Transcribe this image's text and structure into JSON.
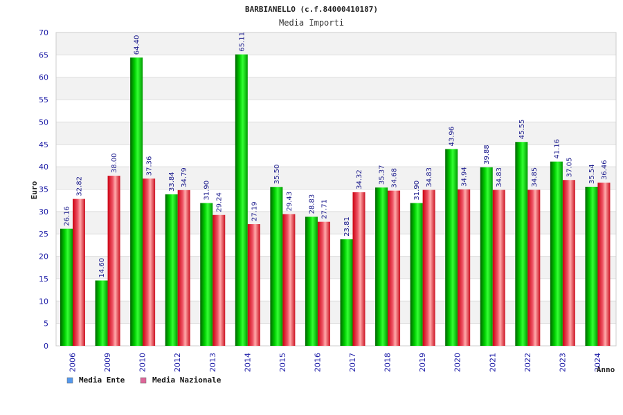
{
  "chart_data": {
    "type": "bar",
    "title": "BARBIANELLO (c.f.84000410187)",
    "subtitle": "Media Importi",
    "ylabel": "Euro",
    "xlabel": "Anno",
    "ylim": [
      0,
      70
    ],
    "ytick_step": 5,
    "grid": true,
    "legend_position": "bottom-left",
    "categories": [
      "2006",
      "2009",
      "2010",
      "2012",
      "2013",
      "2014",
      "2015",
      "2016",
      "2017",
      "2018",
      "2019",
      "2020",
      "2021",
      "2022",
      "2023",
      "2024"
    ],
    "series": [
      {
        "name": "Media Ente",
        "color": "#00aa00",
        "legend_color": "#5599ee",
        "values": [
          26.16,
          14.6,
          64.4,
          33.84,
          31.9,
          65.11,
          35.5,
          28.83,
          23.81,
          35.37,
          31.9,
          43.96,
          39.88,
          45.55,
          41.16,
          35.54
        ],
        "labels": [
          "26.16",
          "14.60",
          "64.40",
          "33.84",
          "31.90",
          "65.11",
          "35.50",
          "28.83",
          "23.81",
          "35.37",
          "31.90",
          "43.96",
          "39.88",
          "45.55",
          "41.16",
          "35.54"
        ]
      },
      {
        "name": "Media Nazionale",
        "color": "#dd1a2a",
        "legend_color": "#dd6699",
        "values": [
          32.82,
          38.0,
          37.36,
          34.79,
          29.24,
          27.19,
          29.43,
          27.71,
          34.32,
          34.68,
          34.83,
          34.94,
          34.83,
          34.85,
          37.05,
          36.46
        ],
        "labels": [
          "32.82",
          "38.00",
          "37.36",
          "34.79",
          "29.24",
          "27.19",
          "29.43",
          "27.71",
          "34.32",
          "34.68",
          "34.83",
          "34.94",
          "34.83",
          "34.85",
          "37.05",
          "36.46"
        ]
      }
    ]
  }
}
